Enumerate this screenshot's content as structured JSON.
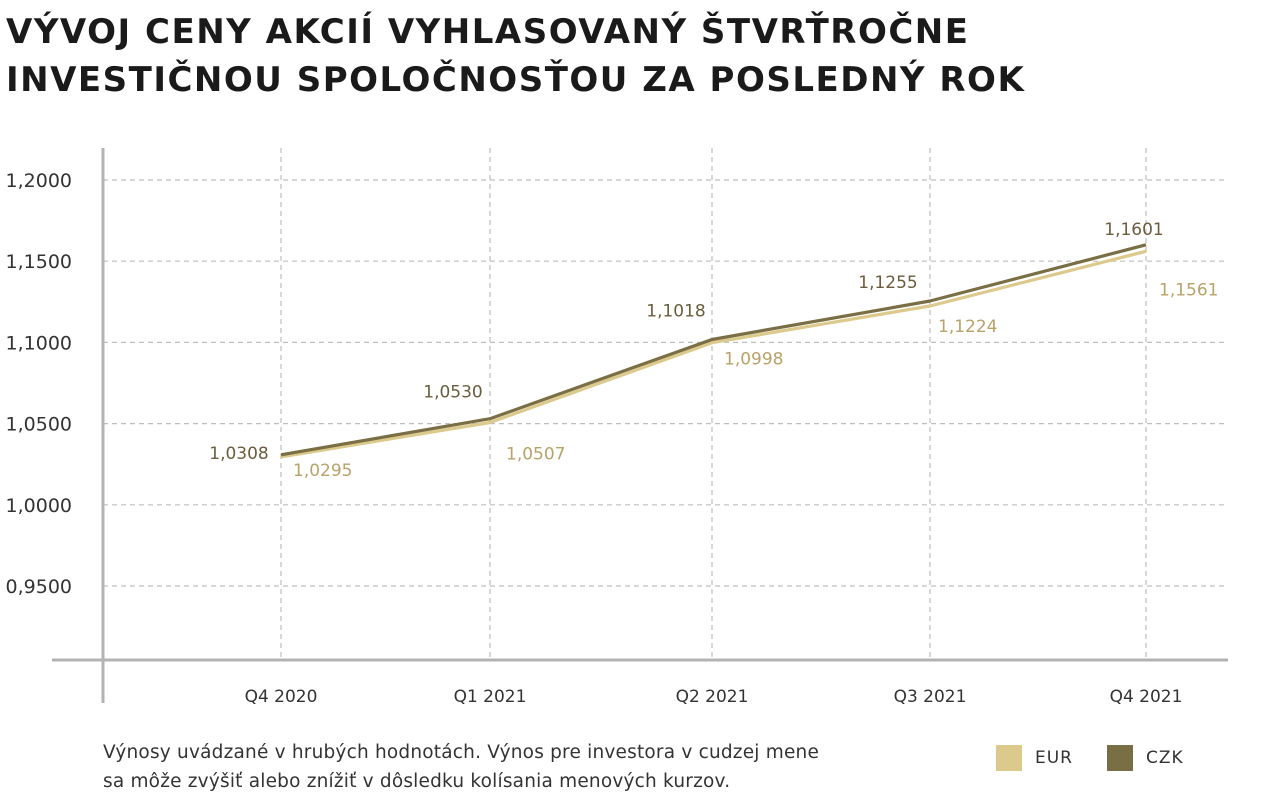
{
  "title_lines": [
    "VÝVOJ CENY AKCIÍ VYHLASOVANÝ ŠTVRŤROČNE",
    "INVESTIČNOU SPOLOČNOSŤOU ZA POSLEDNÝ ROK"
  ],
  "footnote_lines": [
    "Výnosy uvádzané v hrubých hodnotách. Výnos pre investora v cudzej mene",
    "sa môže zvýšiť alebo znížiť v dôsledku kolísania menových kurzov."
  ],
  "colors": {
    "EUR": "#dcc98c",
    "CZK": "#7a6e44",
    "eur_label": "#b9a26a",
    "czk_label": "#6b5d3c",
    "axis": "#b3b3b3",
    "grid": "#bfbfbf"
  },
  "chart_data": {
    "type": "line",
    "title": "VÝVOJ CENY AKCIÍ VYHLASOVANÝ ŠTVRŤROČNE INVESTIČNOU SPOLOČNOSŤOU ZA POSLEDNÝ ROK",
    "categories": [
      "Q4 2020",
      "Q1 2021",
      "Q2 2021",
      "Q3 2021",
      "Q4 2021"
    ],
    "ylim": [
      0.905,
      1.22
    ],
    "yticks": [
      0.95,
      1.0,
      1.05,
      1.1,
      1.15,
      1.2
    ],
    "ytick_labels": [
      "0,9500",
      "1,0000",
      "1,0500",
      "1,1000",
      "1,1500",
      "1,2000"
    ],
    "grid": true,
    "legend_position": "bottom-right",
    "series": [
      {
        "name": "EUR",
        "values": [
          1.0295,
          1.0507,
          1.0998,
          1.1224,
          1.1561
        ],
        "labels": [
          "1,0295",
          "1,0507",
          "1,0998",
          "1,1224",
          "1,1561"
        ]
      },
      {
        "name": "CZK",
        "values": [
          1.0308,
          1.053,
          1.1018,
          1.1255,
          1.1601
        ],
        "labels": [
          "1,0308",
          "1,0530",
          "1,1018",
          "1,1255",
          "1,1601"
        ]
      }
    ]
  }
}
